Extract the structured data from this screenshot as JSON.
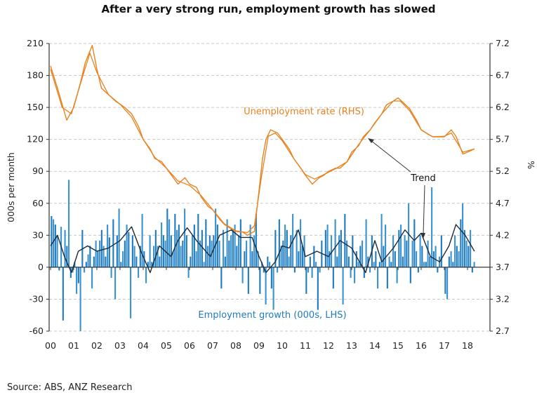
{
  "chart_data": {
    "type": "bar+line",
    "title": "After a very strong run, employment growth has slowed",
    "source": "Source: ABS, ANZ Research",
    "ylabel": "000s per month",
    "y2label": "%",
    "ylim": [
      -60,
      210
    ],
    "y2lim": [
      2.7,
      7.2
    ],
    "yticks": [
      "210",
      "180",
      "150",
      "120",
      "90",
      "60",
      "30",
      "0",
      "-30",
      "-60"
    ],
    "y2ticks": [
      "7.2",
      "6.7",
      "6.2",
      "5.7",
      "5.2",
      "4.7",
      "4.2",
      "3.7",
      "3.2",
      "2.7"
    ],
    "xticks": [
      "00",
      "01",
      "02",
      "03",
      "04",
      "05",
      "06",
      "07",
      "08",
      "09",
      "10",
      "11",
      "12",
      "13",
      "14",
      "15",
      "16",
      "17",
      "18"
    ],
    "grid": "horizontal dashed",
    "annotations": {
      "unemployment": "Unemployment rate (RHS)",
      "employment": "Employment growth (000s, LHS)",
      "trend": "Trend"
    },
    "colors": {
      "unemployment": "#E8821E",
      "employment": "#1F7BC0",
      "trend": "#1c2b3a"
    },
    "employment_monthly_start": 2000.0,
    "employment_monthly": [
      48,
      45,
      40,
      30,
      -3,
      38,
      -50,
      35,
      20,
      82,
      -10,
      -5,
      5,
      -25,
      -15,
      -60,
      35,
      -5,
      5,
      12,
      20,
      -20,
      10,
      25,
      15,
      25,
      35,
      20,
      10,
      40,
      28,
      -10,
      45,
      -30,
      30,
      55,
      5,
      15,
      25,
      40,
      33,
      -48,
      30,
      20,
      10,
      -10,
      20,
      50,
      15,
      -15,
      5,
      30,
      5,
      20,
      35,
      20,
      10,
      42,
      30,
      25,
      55,
      45,
      30,
      15,
      50,
      35,
      40,
      20,
      25,
      55,
      30,
      -10,
      10,
      30,
      40,
      15,
      50,
      25,
      35,
      5,
      45,
      20,
      30,
      25,
      30,
      55,
      40,
      25,
      -20,
      35,
      10,
      45,
      25,
      30,
      35,
      40,
      20,
      30,
      45,
      -15,
      15,
      25,
      -25,
      40,
      15,
      30,
      50,
      15,
      -25,
      5,
      -5,
      -35,
      10,
      5,
      -20,
      -40,
      35,
      -5,
      45,
      20,
      25,
      40,
      35,
      10,
      30,
      50,
      -5,
      35,
      15,
      45,
      20,
      30,
      -25,
      -5,
      10,
      -10,
      20,
      5,
      -40,
      -5,
      25,
      0,
      35,
      40,
      15,
      30,
      -20,
      45,
      10,
      30,
      35,
      -35,
      50,
      25,
      10,
      -10,
      30,
      -15,
      15,
      5,
      20,
      25,
      -10,
      45,
      10,
      -5,
      30,
      5,
      15,
      -20,
      5,
      50,
      20,
      40,
      -20,
      10,
      5,
      30,
      15,
      -15,
      35,
      40,
      10,
      30,
      25,
      60,
      -15,
      25,
      45,
      15,
      -5,
      30,
      20,
      5,
      5,
      25,
      10,
      75,
      15,
      20,
      -5,
      10,
      30,
      0,
      -25,
      -30,
      10,
      15,
      5,
      30,
      20,
      15,
      45,
      60,
      35,
      25,
      20,
      35,
      -5,
      5
    ],
    "employment_trend": [
      [
        2000.0,
        20
      ],
      [
        2000.3,
        30
      ],
      [
        2000.6,
        10
      ],
      [
        2000.9,
        -5
      ],
      [
        2001.2,
        15
      ],
      [
        2001.6,
        20
      ],
      [
        2002.0,
        15
      ],
      [
        2002.5,
        18
      ],
      [
        2003.0,
        25
      ],
      [
        2003.5,
        38
      ],
      [
        2003.9,
        15
      ],
      [
        2004.3,
        -5
      ],
      [
        2004.7,
        20
      ],
      [
        2005.2,
        10
      ],
      [
        2005.5,
        25
      ],
      [
        2005.9,
        37
      ],
      [
        2006.3,
        25
      ],
      [
        2006.9,
        10
      ],
      [
        2007.3,
        30
      ],
      [
        2007.8,
        35
      ],
      [
        2008.2,
        28
      ],
      [
        2008.7,
        28
      ],
      [
        2009.0,
        10
      ],
      [
        2009.3,
        -5
      ],
      [
        2009.7,
        5
      ],
      [
        2010.0,
        20
      ],
      [
        2010.3,
        18
      ],
      [
        2010.7,
        35
      ],
      [
        2011.0,
        10
      ],
      [
        2011.5,
        15
      ],
      [
        2012.0,
        10
      ],
      [
        2012.5,
        25
      ],
      [
        2013.0,
        18
      ],
      [
        2013.6,
        -5
      ],
      [
        2014.0,
        25
      ],
      [
        2014.3,
        5
      ],
      [
        2014.8,
        18
      ],
      [
        2015.3,
        35
      ],
      [
        2015.7,
        25
      ],
      [
        2016.0,
        32
      ],
      [
        2016.4,
        10
      ],
      [
        2016.8,
        5
      ],
      [
        2017.2,
        20
      ],
      [
        2017.5,
        40
      ],
      [
        2017.9,
        30
      ],
      [
        2018.3,
        15
      ]
    ],
    "unemployment_rate": [
      [
        2000.0,
        6.85
      ],
      [
        2000.3,
        6.5
      ],
      [
        2000.7,
        6.0
      ],
      [
        2001.0,
        6.2
      ],
      [
        2001.3,
        6.6
      ],
      [
        2001.5,
        6.9
      ],
      [
        2001.8,
        7.17
      ],
      [
        2002.0,
        6.8
      ],
      [
        2002.2,
        6.5
      ],
      [
        2002.5,
        6.4
      ],
      [
        2002.8,
        6.3
      ],
      [
        2003.2,
        6.2
      ],
      [
        2003.5,
        6.1
      ],
      [
        2003.8,
        5.9
      ],
      [
        2004.0,
        5.7
      ],
      [
        2004.3,
        5.55
      ],
      [
        2004.5,
        5.4
      ],
      [
        2004.8,
        5.35
      ],
      [
        2005.0,
        5.25
      ],
      [
        2005.3,
        5.1
      ],
      [
        2005.5,
        5.0
      ],
      [
        2005.8,
        5.1
      ],
      [
        2006.0,
        5.0
      ],
      [
        2006.3,
        4.95
      ],
      [
        2006.5,
        4.8
      ],
      [
        2006.8,
        4.65
      ],
      [
        2007.0,
        4.6
      ],
      [
        2007.3,
        4.45
      ],
      [
        2007.5,
        4.37
      ],
      [
        2007.8,
        4.3
      ],
      [
        2008.0,
        4.26
      ],
      [
        2008.3,
        4.25
      ],
      [
        2008.5,
        4.2
      ],
      [
        2008.8,
        4.26
      ],
      [
        2009.0,
        4.9
      ],
      [
        2009.15,
        5.4
      ],
      [
        2009.3,
        5.7
      ],
      [
        2009.5,
        5.85
      ],
      [
        2009.8,
        5.8
      ],
      [
        2010.0,
        5.7
      ],
      [
        2010.3,
        5.55
      ],
      [
        2010.5,
        5.4
      ],
      [
        2010.8,
        5.25
      ],
      [
        2011.0,
        5.14
      ],
      [
        2011.3,
        5.0
      ],
      [
        2011.6,
        5.1
      ],
      [
        2011.8,
        5.14
      ],
      [
        2012.0,
        5.2
      ],
      [
        2012.3,
        5.25
      ],
      [
        2012.5,
        5.25
      ],
      [
        2012.8,
        5.35
      ],
      [
        2013.0,
        5.5
      ],
      [
        2013.3,
        5.6
      ],
      [
        2013.5,
        5.74
      ],
      [
        2013.8,
        5.85
      ],
      [
        2014.0,
        5.96
      ],
      [
        2014.3,
        6.1
      ],
      [
        2014.5,
        6.24
      ],
      [
        2014.8,
        6.3
      ],
      [
        2015.0,
        6.35
      ],
      [
        2015.3,
        6.25
      ],
      [
        2015.5,
        6.18
      ],
      [
        2015.8,
        6.0
      ],
      [
        2016.0,
        5.85
      ],
      [
        2016.3,
        5.78
      ],
      [
        2016.5,
        5.74
      ],
      [
        2016.8,
        5.74
      ],
      [
        2017.0,
        5.74
      ],
      [
        2017.3,
        5.85
      ],
      [
        2017.5,
        5.75
      ],
      [
        2017.8,
        5.47
      ],
      [
        2018.0,
        5.5
      ],
      [
        2018.3,
        5.55
      ]
    ],
    "unemployment_trend": [
      [
        2000.0,
        6.8
      ],
      [
        2000.5,
        6.2
      ],
      [
        2000.9,
        6.1
      ],
      [
        2001.4,
        6.7
      ],
      [
        2001.7,
        7.05
      ],
      [
        2002.0,
        6.75
      ],
      [
        2002.5,
        6.4
      ],
      [
        2003.0,
        6.25
      ],
      [
        2003.5,
        6.05
      ],
      [
        2004.0,
        5.7
      ],
      [
        2004.5,
        5.42
      ],
      [
        2005.0,
        5.25
      ],
      [
        2005.5,
        5.05
      ],
      [
        2006.0,
        4.98
      ],
      [
        2006.5,
        4.82
      ],
      [
        2007.0,
        4.6
      ],
      [
        2007.5,
        4.38
      ],
      [
        2008.0,
        4.27
      ],
      [
        2008.5,
        4.24
      ],
      [
        2008.8,
        4.35
      ],
      [
        2009.1,
        5.1
      ],
      [
        2009.4,
        5.75
      ],
      [
        2009.7,
        5.8
      ],
      [
        2010.0,
        5.68
      ],
      [
        2010.5,
        5.4
      ],
      [
        2011.0,
        5.15
      ],
      [
        2011.4,
        5.08
      ],
      [
        2011.8,
        5.15
      ],
      [
        2012.3,
        5.24
      ],
      [
        2012.8,
        5.35
      ],
      [
        2013.3,
        5.62
      ],
      [
        2013.8,
        5.85
      ],
      [
        2014.3,
        6.1
      ],
      [
        2014.8,
        6.3
      ],
      [
        2015.1,
        6.3
      ],
      [
        2015.5,
        6.15
      ],
      [
        2016.0,
        5.85
      ],
      [
        2016.5,
        5.74
      ],
      [
        2017.0,
        5.75
      ],
      [
        2017.3,
        5.8
      ],
      [
        2017.8,
        5.5
      ],
      [
        2018.3,
        5.55
      ]
    ]
  }
}
